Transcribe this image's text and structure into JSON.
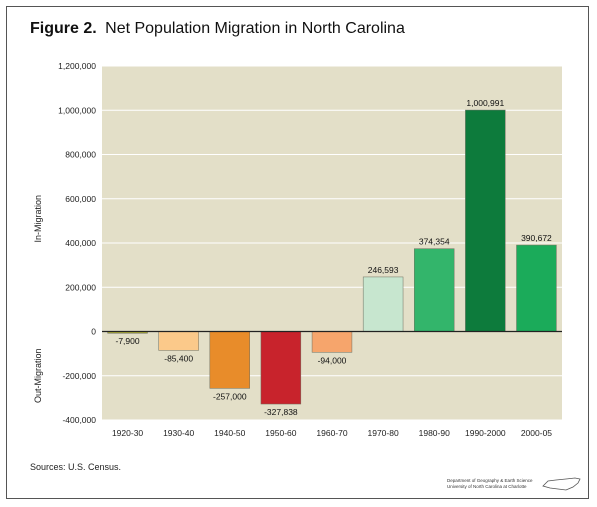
{
  "figure": {
    "title_prefix": "Figure 2.",
    "title": "Net Population Migration in North Carolina",
    "source": "Sources: U.S. Census.",
    "credit_line1": "Department of Geography & Earth Science",
    "credit_line2": "University of North Carolina at Charlotte"
  },
  "chart_data": {
    "type": "bar",
    "title": "Net Population Migration in North Carolina",
    "categories": [
      "1920-30",
      "1930-40",
      "1940-50",
      "1950-60",
      "1960-70",
      "1970-80",
      "1980-90",
      "1990-2000",
      "2000-05"
    ],
    "values": [
      -7900,
      -85400,
      -257000,
      -327838,
      -94000,
      246593,
      374354,
      1000991,
      390672
    ],
    "value_labels": [
      "-7,900",
      "-85,400",
      "-257,000",
      "-327,838",
      "-94,000",
      "246,593",
      "374,354",
      "1,000,991",
      "390,672"
    ],
    "colors": [
      "#a8a83a",
      "#fbc98a",
      "#e88c2a",
      "#c8232c",
      "#f6a56c",
      "#c7e6cf",
      "#33b56b",
      "#0d7b3c",
      "#1bab5a"
    ],
    "ylim": [
      -400000,
      1200000
    ],
    "yticks": [
      -400000,
      -200000,
      0,
      200000,
      400000,
      600000,
      800000,
      1000000,
      1200000
    ],
    "ytick_labels": [
      "-400,000",
      "-200,000",
      "0",
      "200,000",
      "400,000",
      "600,000",
      "800,000",
      "1,000,000",
      "1,200,000"
    ],
    "ylabel_positive": "In-Migration",
    "ylabel_negative": "Out-Migration",
    "xlabel": "",
    "grid": true,
    "plot_background": "#e3dfc8"
  }
}
